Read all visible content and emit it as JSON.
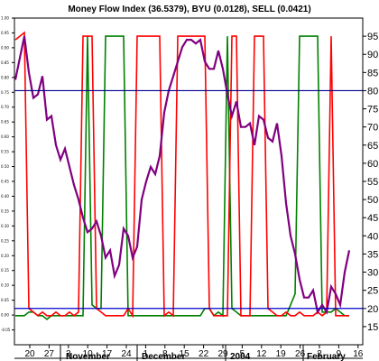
{
  "chart_data": {
    "type": "line",
    "title": "Money Flow Index (36.5379), BYU (0.0128), SELL (0.0421)",
    "y_right": {
      "ylim": [
        10,
        100
      ],
      "ticks": [
        15,
        20,
        25,
        30,
        35,
        40,
        45,
        50,
        55,
        60,
        65,
        70,
        75,
        80,
        85,
        90,
        95
      ]
    },
    "y_left": {
      "ylim": [
        -0.1,
        1.0
      ],
      "ticks": [
        "-0.05",
        "0.00",
        "0.05",
        "0.10",
        "0.15",
        "0.20",
        "0.25",
        "0.30",
        "0.35",
        "0.40",
        "0.45",
        "0.50",
        "0.55",
        "0.60",
        "0.65",
        "0.70",
        "0.75",
        "0.80",
        "0.85",
        "0.90",
        "0.95",
        "1.00"
      ]
    },
    "x_ticks": [
      "20",
      "27",
      "3",
      "10",
      "17",
      "24",
      "1",
      "8",
      "15",
      "22",
      "29",
      "5",
      "12",
      "19",
      "26",
      "2",
      "9",
      "16"
    ],
    "months": [
      "November",
      "December",
      "2004",
      "February"
    ],
    "reference_lines": [
      {
        "value": 80,
        "color": "#00008B"
      },
      {
        "value": 20,
        "color": "#0000CD"
      }
    ],
    "series": [
      {
        "color": "#800080",
        "values": [
          83,
          89,
          95,
          85,
          78,
          79,
          84,
          72,
          73,
          65,
          61,
          64,
          59,
          54,
          50,
          45,
          41,
          42,
          44,
          40,
          34,
          36,
          29,
          32,
          42,
          40,
          34,
          37,
          50,
          55,
          59,
          57,
          62,
          74,
          80,
          84,
          88,
          92,
          94,
          94,
          93,
          94,
          88,
          86,
          86,
          91,
          86,
          79,
          73,
          77,
          70,
          70,
          71,
          65,
          73,
          72,
          67,
          66,
          71,
          62,
          49,
          40,
          35,
          28,
          23,
          23,
          25,
          19,
          21,
          19,
          26,
          24,
          21,
          30,
          36
        ]
      },
      {
        "color": "#FF0000",
        "values": [
          94,
          95,
          96,
          20,
          19,
          18,
          19,
          18,
          18,
          19,
          18,
          18,
          19,
          18,
          19,
          95,
          95,
          95,
          20,
          19,
          18,
          18,
          18,
          18,
          18,
          20,
          18,
          95,
          95,
          95,
          95,
          95,
          95,
          18,
          19,
          18,
          95,
          95,
          95,
          95,
          95,
          95,
          95,
          20,
          18,
          18,
          18,
          18,
          95,
          95,
          18,
          18,
          18,
          95,
          95,
          95,
          20,
          19,
          18,
          18,
          19,
          18,
          18,
          19,
          18,
          18,
          18,
          19,
          18,
          19,
          95,
          18,
          18,
          18,
          18
        ]
      },
      {
        "color": "#008000",
        "values": [
          18,
          18,
          18,
          19,
          19,
          18,
          18,
          17,
          18,
          18,
          18,
          18,
          18,
          18,
          18,
          18,
          95,
          21,
          20,
          20,
          95,
          95,
          95,
          95,
          95,
          18,
          18,
          18,
          18,
          18,
          18,
          18,
          18,
          18,
          18,
          18,
          18,
          18,
          18,
          18,
          18,
          18,
          20,
          20,
          18,
          19,
          18,
          95,
          20,
          19,
          18,
          18,
          18,
          18,
          18,
          18,
          18,
          18,
          18,
          18,
          18,
          21,
          24,
          95,
          95,
          95,
          95,
          95,
          19,
          19,
          19,
          20,
          19,
          18,
          18
        ]
      }
    ],
    "grid": false
  }
}
